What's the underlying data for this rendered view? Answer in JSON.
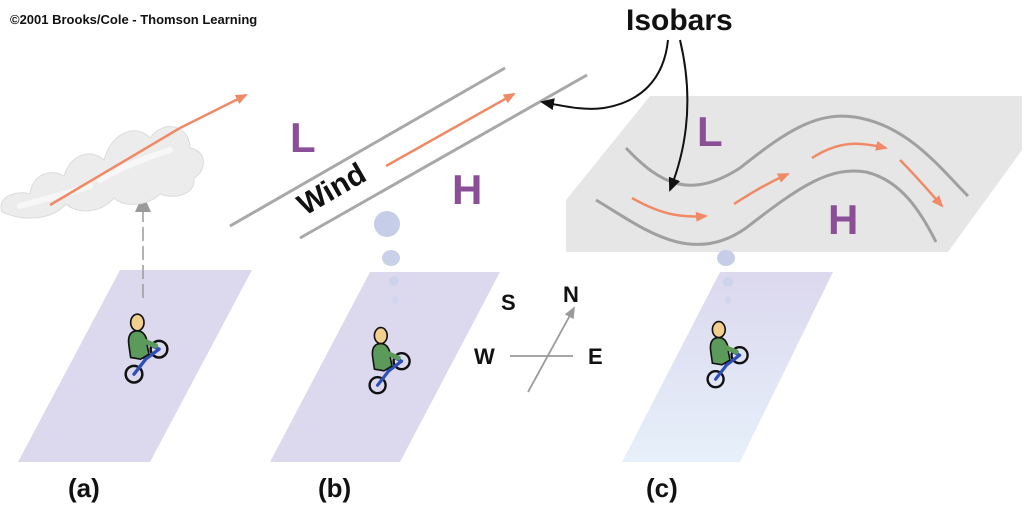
{
  "copyright": "©2001 Brooks/Cole - Thomson Learning",
  "isobars_label": "Isobars",
  "wind_label": "Wind",
  "pressure": {
    "low": "L",
    "high": "H"
  },
  "compass": {
    "north": "N",
    "south": "S",
    "east": "E",
    "west": "W"
  },
  "panels": [
    {
      "label": "(a)"
    },
    {
      "label": "(b)"
    },
    {
      "label": "(c)"
    }
  ],
  "colors": {
    "ground": "#dcd8ee",
    "ground_light": "#e4eef8",
    "isobar_line": "#a8a8a8",
    "upper_plane": "#e6e6e6",
    "wind_arrow": "#f08a66",
    "pressure_text": "#8a4f96",
    "balloon": "#c6cde8",
    "rider_body": "#5b9a5a",
    "rider_skin": "#f3cf8e",
    "bike": "#2f4fb8"
  },
  "icons": [
    "cloud-icon",
    "cyclist-icon",
    "balloon-icon",
    "compass-icon",
    "wind-arrow-icon"
  ]
}
